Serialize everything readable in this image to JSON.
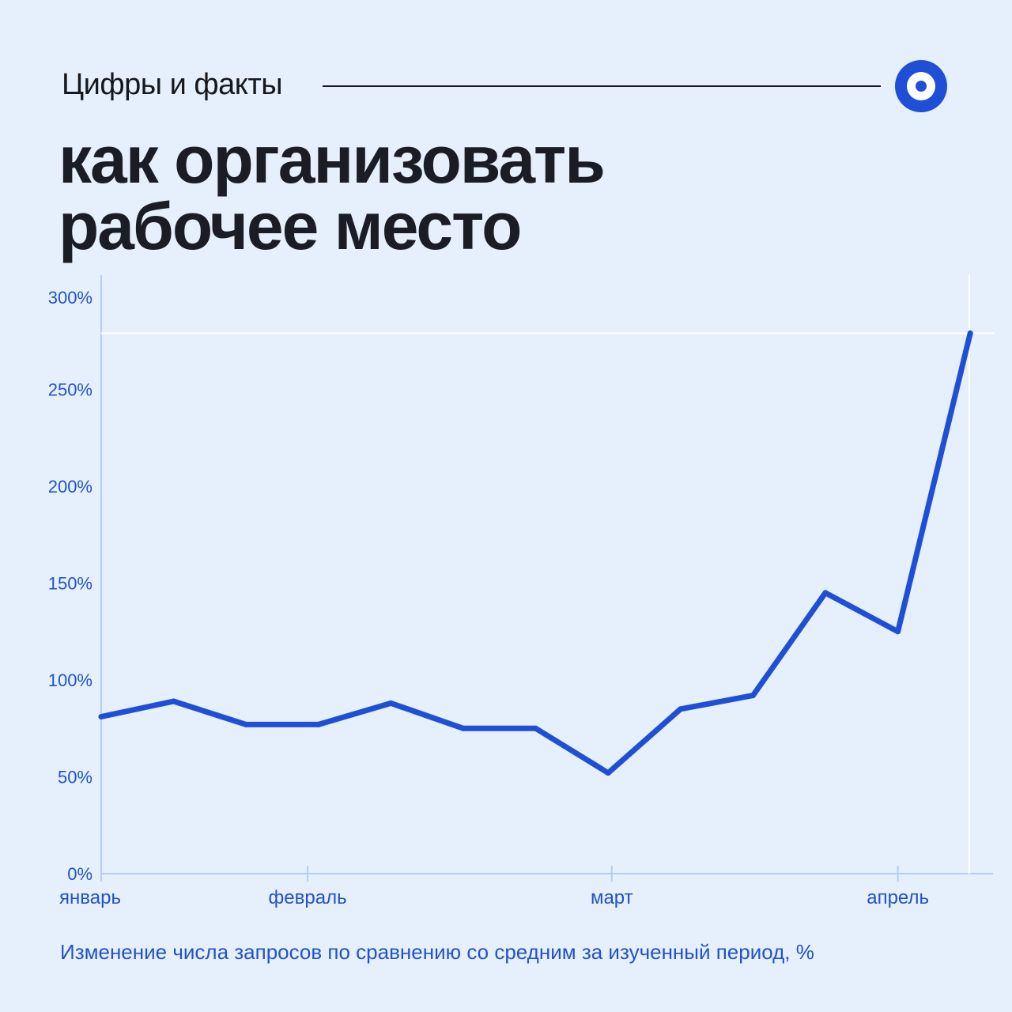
{
  "header": {
    "kicker": "Цифры и факты",
    "title_line1": "как организовать",
    "title_line2": "рабочее место"
  },
  "logo": {
    "icon": "target-icon",
    "color": "#1f4fd6"
  },
  "caption": "Изменение числа запросов по сравнению со средним за изученный период, %",
  "colors": {
    "background": "#e6f0fc",
    "line": "#1f4fd6",
    "text": "#1b1d26",
    "axis": "#b5cdf5",
    "label": "#2152cc"
  },
  "chart_data": {
    "type": "line",
    "title": "",
    "xlabel": "",
    "ylabel": "",
    "ylim": [
      0,
      300
    ],
    "yticks": [
      0,
      50,
      100,
      150,
      200,
      250,
      300
    ],
    "ytick_labels": [
      "0%",
      "50%",
      "100%",
      "150%",
      "200%",
      "250%",
      "300%"
    ],
    "x_month_labels": [
      {
        "label": "январь",
        "index": 0
      },
      {
        "label": "февраль",
        "index": 2.85
      },
      {
        "label": "март",
        "index": 7.05
      },
      {
        "label": "апрель",
        "index": 11.0
      }
    ],
    "series": [
      {
        "values": [
          81,
          89,
          77,
          77,
          88,
          75,
          75,
          52,
          85,
          92,
          145,
          125,
          279
        ]
      }
    ],
    "reference_line": 279,
    "grid": false,
    "legend": "none"
  }
}
